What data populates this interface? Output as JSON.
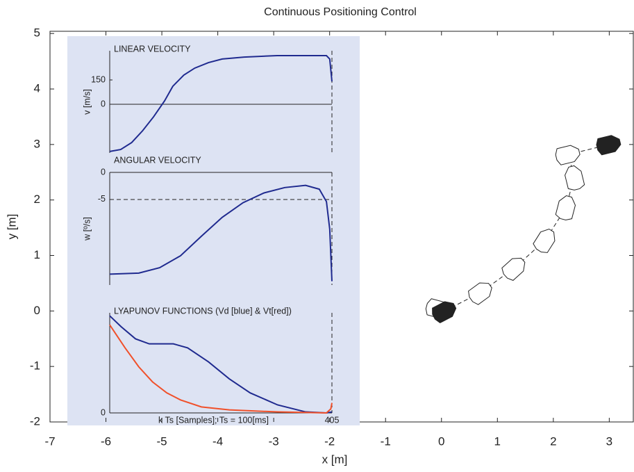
{
  "chart_data": [
    {
      "type": "trajectory",
      "title": "Continuous Positioning Control",
      "xlabel": "x [m]",
      "ylabel": "y [m]",
      "x": [
        -0.05,
        0.06,
        0.71,
        1.31,
        1.86,
        2.23,
        2.37,
        2.27,
        3.0
      ],
      "y": [
        0.03,
        0,
        0.34,
        0.78,
        1.28,
        1.87,
        2.41,
        2.82,
        3.0
      ],
      "marker_colors": [
        "#ffffff",
        "#222222",
        "#ffffff",
        "#ffffff",
        "#ffffff",
        "#ffffff",
        "#ffffff",
        "#ffffff",
        "#222222"
      ],
      "line_style": "dashed",
      "color": "#222222",
      "xlim": [
        -7,
        3.43
      ],
      "ylim": [
        -2,
        5.04
      ],
      "xticks": [
        -7,
        -6,
        -5,
        -4,
        -3,
        -2,
        -1,
        0,
        1,
        2,
        3
      ],
      "yticks": [
        -2,
        -1,
        0,
        1,
        2,
        3,
        4,
        5
      ]
    },
    {
      "type": "line",
      "title": "LINEAR VELOCITY",
      "ylabel": "v [m/s]",
      "xlim": [
        0,
        405
      ],
      "ylim": [
        -300,
        330
      ],
      "yticks": [
        0,
        150
      ],
      "xticks": [
        405
      ],
      "show_xtick_labels": false,
      "grid": false,
      "series": [
        {
          "color": "#1f2a8f",
          "x": [
            0,
            20,
            40,
            60,
            80,
            100,
            115,
            135,
            155,
            180,
            205,
            245,
            305,
            370,
            395,
            401,
            405
          ],
          "values": [
            -291,
            -279,
            -236,
            -163,
            -77,
            21,
            111,
            180,
            223,
            257,
            279,
            291,
            300,
            300,
            300,
            279,
            141
          ]
        }
      ]
    },
    {
      "type": "line",
      "title": "ANGULAR VELOCITY",
      "ylabel": "w [º/s]",
      "xlim": [
        0,
        405
      ],
      "ylim": [
        -20.8,
        0
      ],
      "yticks": [
        0,
        -5
      ],
      "xticks": [
        405
      ],
      "show_xtick_labels": false,
      "grid": true,
      "series": [
        {
          "color": "#1f2a8f",
          "x": [
            0,
            53,
            91,
            129,
            167,
            205,
            243,
            281,
            319,
            357,
            382,
            395,
            401,
            405
          ],
          "values": [
            -18.8,
            -18.6,
            -17.6,
            -15.4,
            -11.8,
            -8.3,
            -5.6,
            -3.8,
            -2.8,
            -2.4,
            -3.1,
            -5.4,
            -10.5,
            -20.1
          ]
        }
      ]
    },
    {
      "type": "line",
      "title": "LYAPUNOV FUNCTIONS (Vd [blue] & Vt[red])",
      "xlabel": "k Ts [Samples]; Ts = 100[ms]",
      "xlim": [
        0,
        405
      ],
      "ylim": [
        0,
        1
      ],
      "yticks": [
        0
      ],
      "xticks": [
        405
      ],
      "show_xtick_labels": true,
      "grid": false,
      "series": [
        {
          "color": "#1f2a8f",
          "x": [
            0,
            21,
            47,
            72,
            116,
            142,
            180,
            218,
            256,
            306,
            357,
            395,
            405
          ],
          "values": [
            0.97,
            0.86,
            0.74,
            0.69,
            0.69,
            0.65,
            0.51,
            0.34,
            0.2,
            0.08,
            0.01,
            0,
            0.01
          ]
        },
        {
          "color": "#f0502a",
          "x": [
            0,
            28,
            53,
            78,
            104,
            129,
            167,
            218,
            306,
            395,
            403,
            405
          ],
          "values": [
            0.88,
            0.65,
            0.46,
            0.31,
            0.2,
            0.13,
            0.06,
            0.03,
            0.01,
            0,
            0.04,
            0.1
          ]
        }
      ]
    }
  ]
}
